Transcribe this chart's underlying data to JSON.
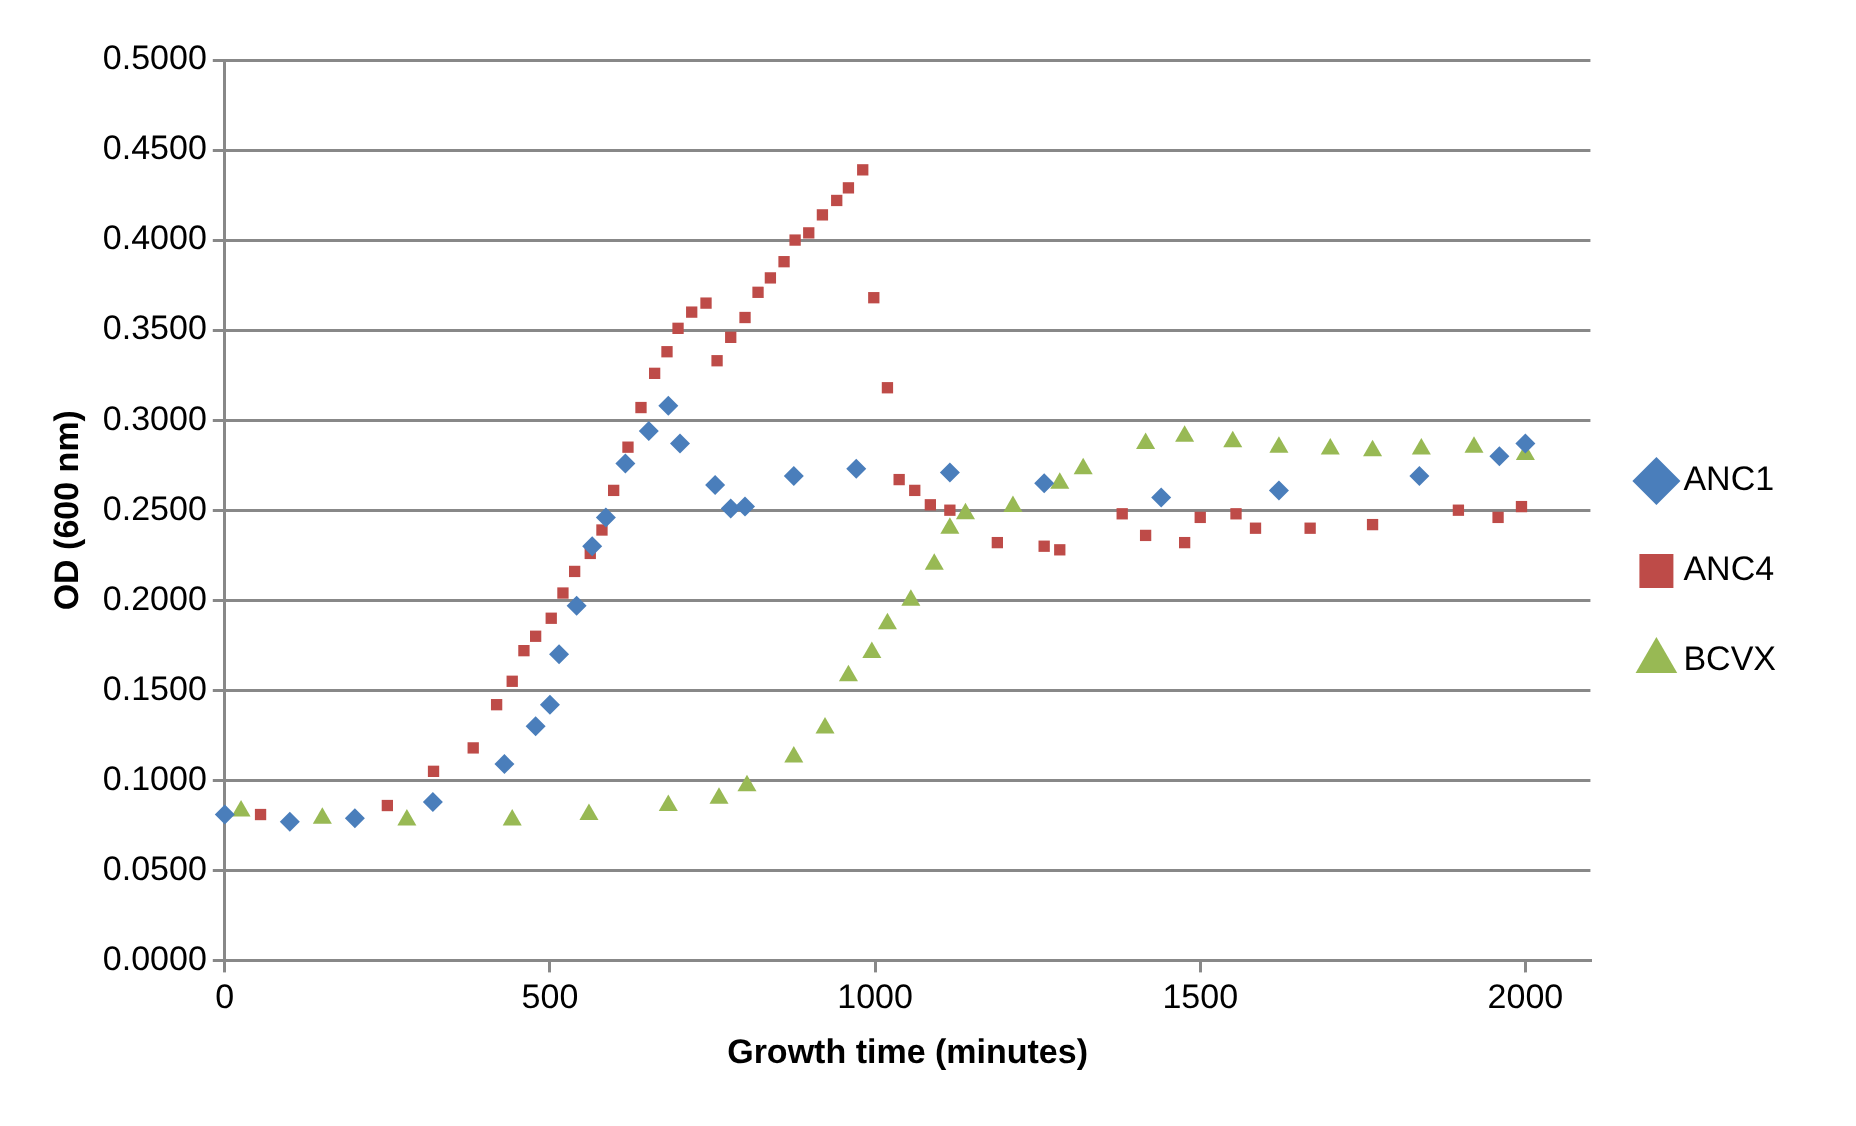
{
  "chart_data": {
    "type": "scatter",
    "xlabel": "Growth time (minutes)",
    "ylabel": "OD (600 nm)",
    "xlim": [
      0,
      2100
    ],
    "xticks": [
      0,
      500,
      1000,
      1500,
      2000
    ],
    "ylim": [
      0,
      0.5
    ],
    "yticks": [
      {
        "value": 0,
        "label": "0.0000"
      },
      {
        "value": 0.05,
        "label": "0.0500"
      },
      {
        "value": 0.1,
        "label": "0.1000"
      },
      {
        "value": 0.15,
        "label": "0.1500"
      },
      {
        "value": 0.2,
        "label": "0.2000"
      },
      {
        "value": 0.25,
        "label": "0.2500"
      },
      {
        "value": 0.3,
        "label": "0.3000"
      },
      {
        "value": 0.35,
        "label": "0.3500"
      },
      {
        "value": 0.4,
        "label": "0.4000"
      },
      {
        "value": 0.45,
        "label": "0.4500"
      },
      {
        "value": 0.5,
        "label": "0.5000"
      }
    ],
    "grid": "y",
    "legend": "right",
    "series": [
      {
        "name": "ANC1",
        "color": "#4a7ebb",
        "marker": "diamond",
        "x": [
          0,
          100,
          200,
          320,
          430,
          478,
          500,
          514,
          541,
          565,
          586,
          616,
          652,
          682,
          700,
          754,
          778,
          800,
          875,
          971,
          1115,
          1260,
          1440,
          1621,
          1837,
          1960,
          2000
        ],
        "values": [
          0.081,
          0.077,
          0.079,
          0.088,
          0.109,
          0.13,
          0.142,
          0.17,
          0.197,
          0.23,
          0.246,
          0.276,
          0.294,
          0.308,
          0.287,
          0.264,
          0.251,
          0.252,
          0.269,
          0.273,
          0.271,
          0.265,
          0.257,
          0.261,
          0.269,
          0.28,
          0.287
        ]
      },
      {
        "name": "ANC4",
        "color": "#be4b48",
        "marker": "square",
        "x": [
          55,
          250,
          321,
          382,
          418,
          442,
          460,
          478,
          502,
          520,
          538,
          562,
          580,
          598,
          620,
          640,
          661,
          680,
          697,
          718,
          740,
          757,
          778,
          800,
          820,
          839,
          860,
          877,
          898,
          919,
          941,
          959,
          981,
          998,
          1019,
          1037,
          1061,
          1085,
          1115,
          1188,
          1260,
          1284,
          1380,
          1416,
          1476,
          1500,
          1555,
          1585,
          1669,
          1765,
          1897,
          1958,
          1994
        ],
        "values": [
          0.081,
          0.086,
          0.105,
          0.118,
          0.142,
          0.155,
          0.172,
          0.18,
          0.19,
          0.204,
          0.216,
          0.226,
          0.239,
          0.261,
          0.285,
          0.307,
          0.326,
          0.338,
          0.351,
          0.36,
          0.365,
          0.333,
          0.346,
          0.357,
          0.371,
          0.379,
          0.388,
          0.4,
          0.404,
          0.414,
          0.422,
          0.429,
          0.439,
          0.368,
          0.318,
          0.267,
          0.261,
          0.253,
          0.25,
          0.232,
          0.23,
          0.228,
          0.248,
          0.236,
          0.232,
          0.246,
          0.248,
          0.24,
          0.24,
          0.242,
          0.25,
          0.246,
          0.252
        ]
      },
      {
        "name": "BCVX",
        "color": "#98b954",
        "marker": "triangle",
        "x": [
          25,
          150,
          280,
          442,
          560,
          682,
          760,
          803,
          875,
          923,
          959,
          995,
          1019,
          1055,
          1091,
          1115,
          1139,
          1212,
          1284,
          1320,
          1416,
          1476,
          1550,
          1621,
          1700,
          1765,
          1840,
          1921,
          2000
        ],
        "values": [
          0.083,
          0.079,
          0.078,
          0.078,
          0.081,
          0.086,
          0.09,
          0.097,
          0.113,
          0.129,
          0.158,
          0.171,
          0.187,
          0.2,
          0.22,
          0.24,
          0.248,
          0.252,
          0.265,
          0.273,
          0.287,
          0.291,
          0.288,
          0.285,
          0.284,
          0.283,
          0.284,
          0.285,
          0.281
        ]
      }
    ]
  }
}
